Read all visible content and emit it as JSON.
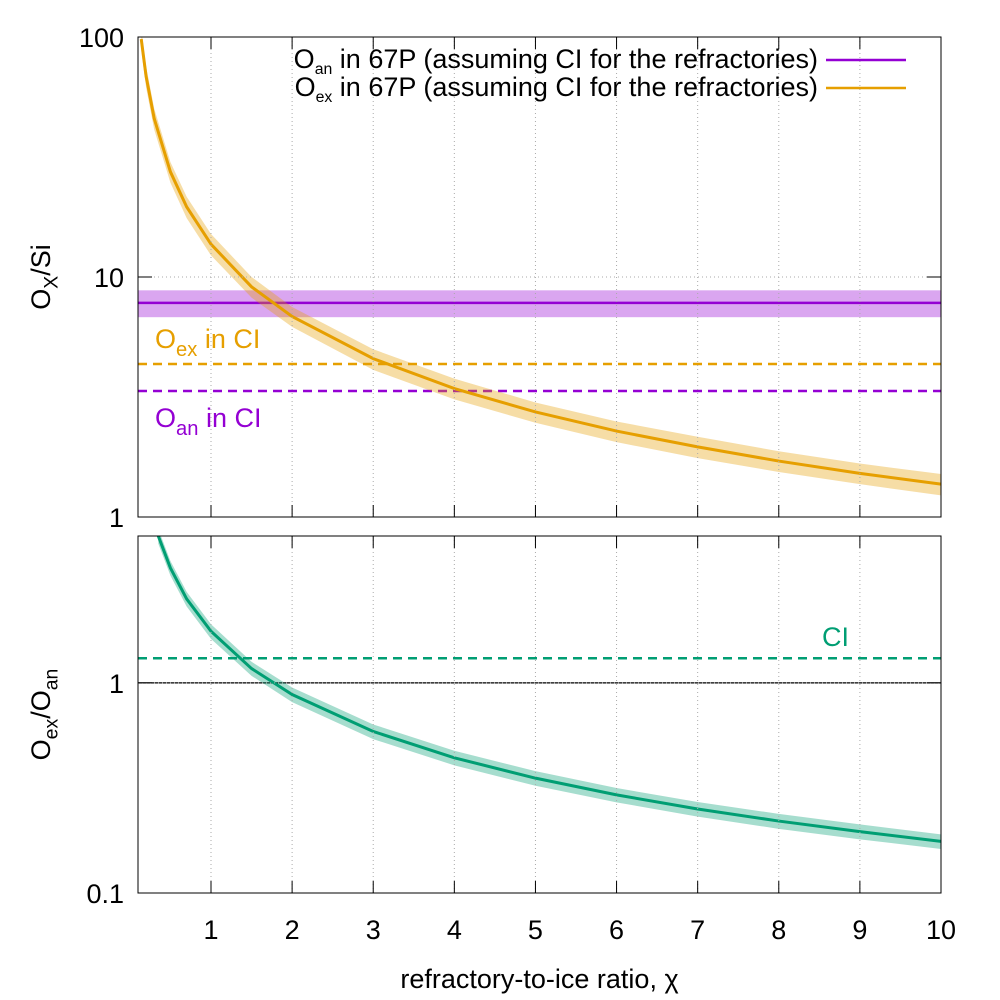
{
  "chart_data": [
    {
      "type": "line",
      "yscale": "log",
      "grid": true,
      "legend": "top-right",
      "ylabel": {
        "parts": [
          {
            "text": "O"
          },
          {
            "text": "X",
            "sub": true
          },
          {
            "text": "/Si"
          }
        ]
      },
      "xlim": [
        0.1,
        10
      ],
      "xticks": [
        1,
        2,
        3,
        4,
        5,
        6,
        7,
        8,
        9,
        10
      ],
      "xtick_labels": false,
      "ylim": [
        1,
        100
      ],
      "yticks": [
        1,
        10,
        100
      ],
      "series": [
        {
          "name": {
            "parts": [
              {
                "text": "O"
              },
              {
                "text": "an",
                "sub": true
              },
              {
                "text": " in 67P (assuming CI for the refractories)"
              }
            ]
          },
          "color": "#9400d3",
          "kind": "hline",
          "y": 7.8,
          "lower": 6.8,
          "upper": 8.8
        },
        {
          "name": {
            "parts": [
              {
                "text": "O"
              },
              {
                "text": "ex",
                "sub": true
              },
              {
                "text": " in 67P (assuming CI for the refractories)"
              }
            ]
          },
          "color": "#e69f00",
          "kind": "curve",
          "x": [
            0.14,
            0.2,
            0.3,
            0.5,
            0.7,
            1,
            1.5,
            2,
            3,
            4,
            5,
            6,
            7,
            8,
            9,
            10
          ],
          "values": [
            98,
            68.5,
            45.7,
            27.4,
            19.6,
            13.7,
            9.1,
            6.85,
            4.57,
            3.43,
            2.74,
            2.28,
            1.96,
            1.71,
            1.52,
            1.37
          ],
          "upper": [
            108,
            75.4,
            50.3,
            30.1,
            21.6,
            15.1,
            10,
            7.5,
            5.0,
            3.77,
            3.0,
            2.5,
            2.16,
            1.88,
            1.67,
            1.51
          ],
          "lower": [
            88,
            61.6,
            41.1,
            24.7,
            17.6,
            12.3,
            8.2,
            6.2,
            4.1,
            3.09,
            2.47,
            2.05,
            1.76,
            1.54,
            1.37,
            1.23
          ]
        }
      ],
      "reference_lines": [
        {
          "y": 4.34,
          "color": "#e69f00",
          "dash": true
        },
        {
          "y": 3.35,
          "color": "#9400d3",
          "dash": true
        }
      ],
      "annotations": [
        {
          "parts": [
            {
              "text": "O"
            },
            {
              "text": "ex",
              "sub": true
            },
            {
              "text": " in CI"
            }
          ],
          "color": "#e69f00"
        },
        {
          "parts": [
            {
              "text": "O"
            },
            {
              "text": "an",
              "sub": true
            },
            {
              "text": " in CI"
            }
          ],
          "color": "#9400d3"
        }
      ]
    },
    {
      "type": "line",
      "yscale": "log",
      "grid": true,
      "ylabel": {
        "parts": [
          {
            "text": "O"
          },
          {
            "text": "ex",
            "sub": true
          },
          {
            "text": "/O"
          },
          {
            "text": "an",
            "sub": true
          }
        ]
      },
      "xlabel": "refractory-to-ice ratio, χ",
      "xlim": [
        0.1,
        10
      ],
      "xticks": [
        1,
        2,
        3,
        4,
        5,
        6,
        7,
        8,
        9,
        10
      ],
      "xtick_labels": true,
      "ylim": [
        0.1,
        5
      ],
      "yticks": [
        0.1,
        1
      ],
      "series": [
        {
          "color": "#009e73",
          "kind": "curve",
          "x": [
            0.35,
            0.5,
            0.7,
            1,
            1.5,
            2,
            3,
            4,
            5,
            6,
            7,
            8,
            9,
            10
          ],
          "values": [
            5.0,
            3.52,
            2.51,
            1.76,
            1.17,
            0.88,
            0.587,
            0.44,
            0.352,
            0.293,
            0.251,
            0.22,
            0.196,
            0.176
          ],
          "upper": [
            5.4,
            3.8,
            2.71,
            1.9,
            1.26,
            0.95,
            0.634,
            0.475,
            0.38,
            0.316,
            0.271,
            0.238,
            0.212,
            0.19
          ],
          "lower": [
            4.6,
            3.24,
            2.31,
            1.62,
            1.08,
            0.81,
            0.54,
            0.405,
            0.324,
            0.27,
            0.231,
            0.202,
            0.18,
            0.162
          ]
        }
      ],
      "reference_lines": [
        {
          "y": 1.31,
          "color": "#009e73",
          "dash": true
        },
        {
          "y": 1,
          "color": "#000000",
          "dash": false
        }
      ],
      "annotations": [
        {
          "parts": [
            {
              "text": "CI"
            }
          ],
          "color": "#009e73"
        }
      ]
    }
  ]
}
